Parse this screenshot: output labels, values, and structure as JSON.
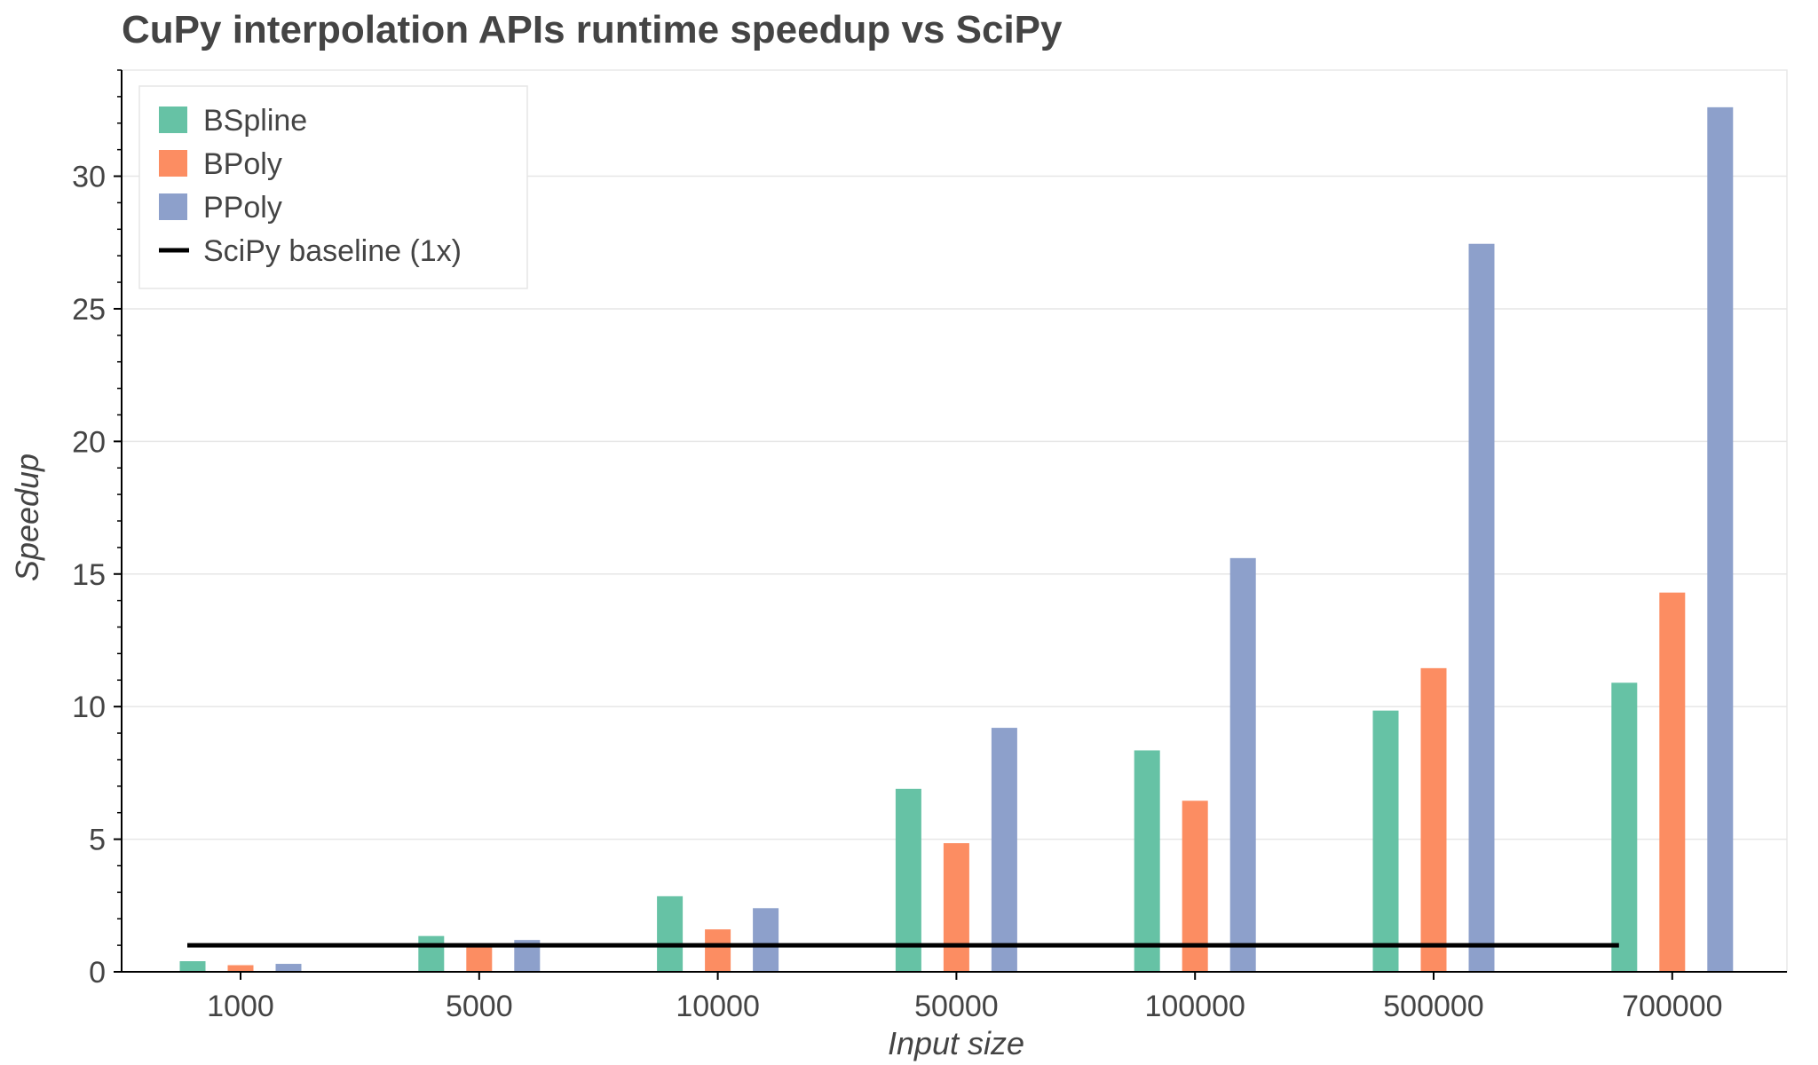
{
  "chart_data": {
    "type": "bar",
    "title": "CuPy interpolation APIs runtime speedup vs SciPy",
    "xlabel": "Input size",
    "ylabel": "Speedup",
    "categories": [
      "1000",
      "5000",
      "10000",
      "50000",
      "100000",
      "500000",
      "700000"
    ],
    "series": [
      {
        "name": "BSpline",
        "color": "#66c2a5",
        "values": [
          0.4,
          1.35,
          2.85,
          6.9,
          8.35,
          9.85,
          10.9
        ]
      },
      {
        "name": "BPoly",
        "color": "#fc8d62",
        "values": [
          0.25,
          0.95,
          1.6,
          4.85,
          6.45,
          11.45,
          14.3
        ]
      },
      {
        "name": "PPoly",
        "color": "#8da0cb",
        "values": [
          0.3,
          1.2,
          2.4,
          9.2,
          15.6,
          27.45,
          32.6
        ]
      }
    ],
    "baseline": {
      "name": "SciPy baseline (1x)",
      "value": 1,
      "color": "#000000"
    },
    "ylim": [
      0,
      34
    ],
    "yticks": [
      0,
      5,
      10,
      15,
      20,
      25,
      30
    ],
    "grid": true,
    "legend": "top-left"
  }
}
